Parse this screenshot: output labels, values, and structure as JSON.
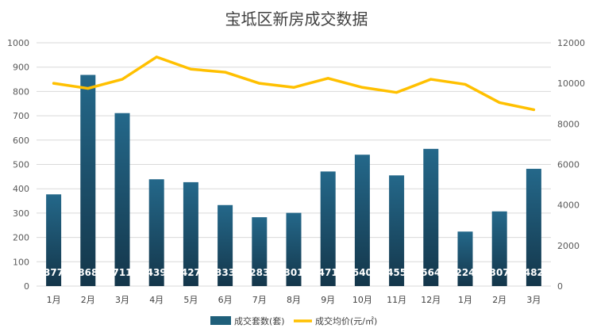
{
  "chart_data": {
    "type": "bar",
    "title": "宝坻区新房成交数据",
    "categories": [
      "1月",
      "2月",
      "3月",
      "4月",
      "5月",
      "6月",
      "7月",
      "8月",
      "9月",
      "10月",
      "11月",
      "12月",
      "1月",
      "2月",
      "3月"
    ],
    "series": [
      {
        "name": "成交套数(套)",
        "type": "bar",
        "axis": "left",
        "color": "#1f5f7a",
        "values": [
          377,
          868,
          711,
          439,
          427,
          333,
          283,
          301,
          471,
          540,
          455,
          564,
          224,
          307,
          482
        ],
        "data_labels": [
          "377",
          "868",
          "711",
          "439",
          "427",
          "333",
          "283",
          "301",
          "471",
          "540",
          "455",
          "564",
          "224",
          "307",
          "482"
        ]
      },
      {
        "name": "成交均价(元/㎡)",
        "type": "line",
        "axis": "right",
        "color": "#ffc000",
        "values": [
          10000,
          9750,
          10200,
          11300,
          10700,
          10550,
          10000,
          9800,
          10250,
          9800,
          9550,
          10200,
          9950,
          9050,
          8700
        ]
      }
    ],
    "y_left": {
      "min": 0,
      "max": 1000,
      "ticks": [
        0,
        100,
        200,
        300,
        400,
        500,
        600,
        700,
        800,
        900,
        1000
      ]
    },
    "y_right": {
      "min": 0,
      "max": 12000,
      "ticks": [
        0,
        2000,
        4000,
        6000,
        8000,
        10000,
        12000
      ]
    },
    "grid": true,
    "legend_position": "bottom"
  }
}
